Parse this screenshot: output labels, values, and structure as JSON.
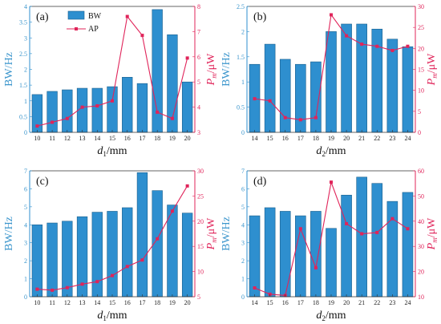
{
  "colors": {
    "bar": "#2e8fcf",
    "bar_edge": "#1b5f8c",
    "line": "#e0245a",
    "frame": "#333333"
  },
  "legend": {
    "bw": "BW",
    "ap": "AP"
  },
  "chart_data": [
    {
      "type": "bar",
      "panel_label": "(a)",
      "categories": [
        "10",
        "11",
        "12",
        "13",
        "14",
        "15",
        "16",
        "17",
        "18",
        "19",
        "20"
      ],
      "xlabel": "d1/mm",
      "ylabel_left": "BW/Hz",
      "ylabel_right": "Pm/μW",
      "ylim_left": [
        0,
        4
      ],
      "yticks_left": [
        0,
        0.5,
        1,
        1.5,
        2,
        2.5,
        3,
        3.5,
        4
      ],
      "ylim_right": [
        3,
        8
      ],
      "yticks_right": [
        3,
        4,
        5,
        6,
        7,
        8
      ],
      "series": [
        {
          "name": "BW",
          "axis": "left",
          "kind": "bar",
          "values": [
            1.2,
            1.3,
            1.35,
            1.4,
            1.4,
            1.45,
            1.75,
            1.55,
            3.9,
            3.1,
            1.6
          ]
        },
        {
          "name": "AP",
          "axis": "right",
          "kind": "line",
          "values": [
            3.25,
            3.4,
            3.55,
            4.0,
            4.05,
            4.25,
            7.6,
            6.85,
            3.8,
            3.55,
            5.95
          ]
        }
      ],
      "legend": true
    },
    {
      "type": "bar",
      "panel_label": "(b)",
      "categories": [
        "14",
        "15",
        "16",
        "17",
        "18",
        "19",
        "20",
        "21",
        "22",
        "23",
        "24"
      ],
      "xlabel": "d2/mm",
      "ylabel_left": "BW/Hz",
      "ylabel_right": "Pm/μW",
      "ylim_left": [
        0,
        2.5
      ],
      "yticks_left": [
        0,
        0.5,
        1,
        1.5,
        2,
        2.5
      ],
      "ylim_right": [
        0,
        30
      ],
      "yticks_right": [
        0,
        5,
        10,
        15,
        20,
        25,
        30
      ],
      "series": [
        {
          "name": "BW",
          "axis": "left",
          "kind": "bar",
          "values": [
            1.35,
            1.75,
            1.45,
            1.35,
            1.4,
            2.0,
            2.15,
            2.15,
            2.05,
            1.85,
            1.7
          ]
        },
        {
          "name": "AP",
          "axis": "right",
          "kind": "line",
          "values": [
            8.0,
            7.5,
            3.5,
            3.0,
            3.5,
            28.0,
            23.0,
            21.0,
            20.5,
            19.5,
            20.5
          ]
        }
      ],
      "legend": false
    },
    {
      "type": "bar",
      "panel_label": "(c)",
      "categories": [
        "10",
        "11",
        "12",
        "13",
        "14",
        "15",
        "16",
        "17",
        "18",
        "19",
        "20"
      ],
      "xlabel": "d1/mm",
      "ylabel_left": "BW/Hz",
      "ylabel_right": "Pm/μW",
      "ylim_left": [
        0,
        7
      ],
      "yticks_left": [
        0,
        1,
        2,
        3,
        4,
        5,
        6,
        7
      ],
      "ylim_right": [
        5,
        30
      ],
      "yticks_right": [
        5,
        10,
        15,
        20,
        25,
        30
      ],
      "series": [
        {
          "name": "BW",
          "axis": "left",
          "kind": "bar",
          "values": [
            4.0,
            4.1,
            4.2,
            4.45,
            4.7,
            4.75,
            4.95,
            6.9,
            5.9,
            5.1,
            4.65
          ]
        },
        {
          "name": "AP",
          "axis": "right",
          "kind": "line",
          "values": [
            6.5,
            6.3,
            6.8,
            7.5,
            8.0,
            9.2,
            11.0,
            12.3,
            16.5,
            22.0,
            27.0
          ]
        }
      ],
      "legend": false
    },
    {
      "type": "bar",
      "panel_label": "(d)",
      "categories": [
        "14",
        "15",
        "16",
        "17",
        "18",
        "19",
        "20",
        "21",
        "22",
        "23",
        "24"
      ],
      "xlabel": "d2/mm",
      "ylabel_left": "BW/Hz",
      "ylabel_right": "Pm/μW",
      "ylim_left": [
        0,
        7
      ],
      "yticks_left": [
        0,
        1,
        2,
        3,
        4,
        5,
        6,
        7
      ],
      "ylim_right": [
        10,
        60
      ],
      "yticks_right": [
        10,
        20,
        30,
        40,
        50,
        60
      ],
      "series": [
        {
          "name": "BW",
          "axis": "left",
          "kind": "bar",
          "values": [
            4.5,
            4.95,
            4.75,
            4.5,
            4.75,
            3.8,
            5.65,
            6.65,
            6.3,
            5.3,
            5.8
          ]
        },
        {
          "name": "AP",
          "axis": "right",
          "kind": "line",
          "values": [
            13.5,
            11.0,
            10.5,
            37.0,
            21.5,
            55.5,
            39.0,
            35.0,
            35.5,
            41.0,
            37.0
          ]
        }
      ],
      "legend": false
    }
  ]
}
